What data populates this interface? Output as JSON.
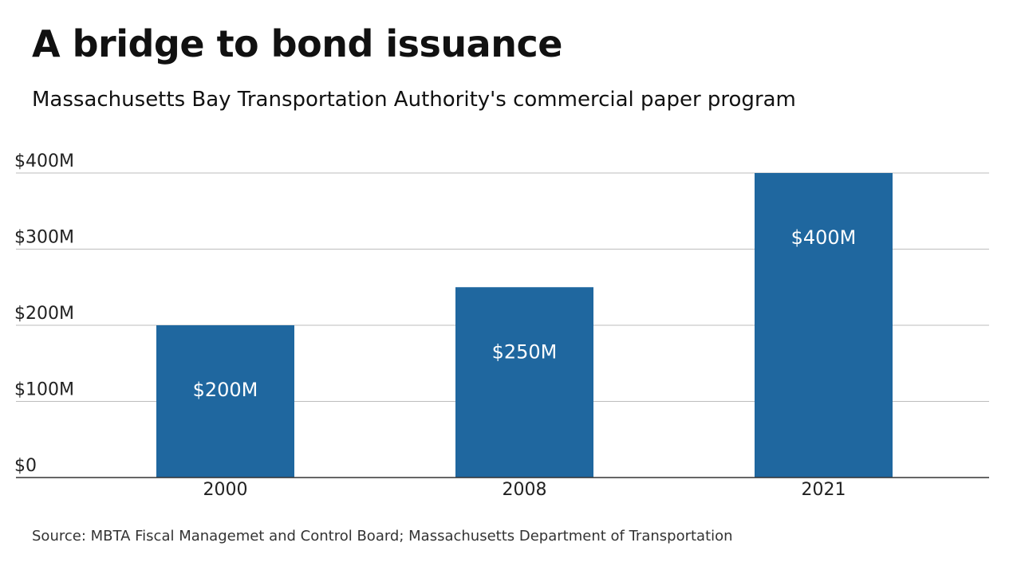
{
  "title": "A bridge to bond issuance",
  "subtitle": "Massachusetts Bay Transportation Authority's commercial paper program",
  "source": "Source: MBTA Fiscal Managemet and Control Board; Massachusetts Department of Transportation",
  "colors": {
    "bar": "#1f679f",
    "grid": "#bdbdbd",
    "axis": "#333333",
    "bar_label": "#ffffff"
  },
  "chart_data": {
    "type": "bar",
    "categories": [
      "2000",
      "2008",
      "2021"
    ],
    "values": [
      200,
      250,
      400
    ],
    "data_labels": [
      "$200M",
      "$250M",
      "$400M"
    ],
    "ylim": [
      0,
      400
    ],
    "yticks": [
      0,
      100,
      200,
      300,
      400
    ],
    "ytick_labels": [
      "$0",
      "$100M",
      "$200M",
      "$300M",
      "$400M"
    ],
    "xlabel": "",
    "ylabel": "",
    "grid": true,
    "legend": "none"
  }
}
